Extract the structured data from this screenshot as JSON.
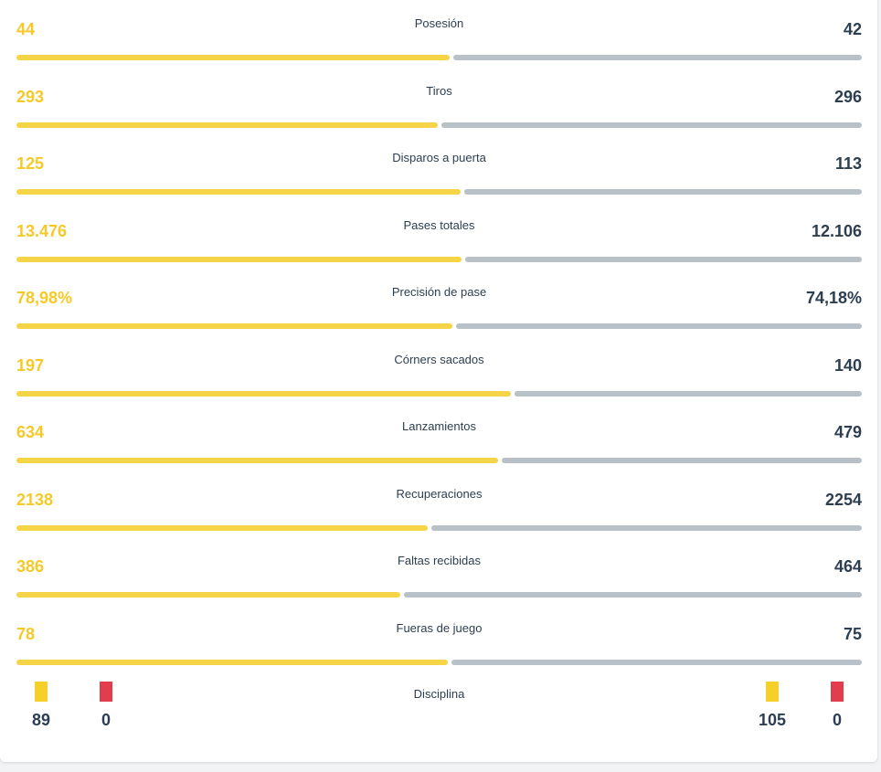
{
  "stats": [
    {
      "label": "Posesión",
      "home": "44",
      "away": "42",
      "home_share": 0.512
    },
    {
      "label": "Tiros",
      "home": "293",
      "away": "296",
      "home_share": 0.498
    },
    {
      "label": "Disparos a puerta",
      "home": "125",
      "away": "113",
      "home_share": 0.525
    },
    {
      "label": "Pases totales",
      "home": "13.476",
      "away": "12.106",
      "home_share": 0.527
    },
    {
      "label": "Precisión de pase",
      "home": "78,98%",
      "away": "74,18%",
      "home_share": 0.516
    },
    {
      "label": "Córners sacados",
      "home": "197",
      "away": "140",
      "home_share": 0.585
    },
    {
      "label": "Lanzamientos",
      "home": "634",
      "away": "479",
      "home_share": 0.57
    },
    {
      "label": "Recuperaciones",
      "home": "2138",
      "away": "2254",
      "home_share": 0.487
    },
    {
      "label": "Faltas recibidas",
      "home": "386",
      "away": "464",
      "home_share": 0.454
    },
    {
      "label": "Fueras de juego",
      "home": "78",
      "away": "75",
      "home_share": 0.51
    }
  ],
  "discipline": {
    "label": "Disciplina",
    "home_yellow": "89",
    "home_red": "0",
    "away_yellow": "105",
    "away_red": "0"
  },
  "colors": {
    "home": "#f6c928",
    "away": "#b8c0c8",
    "text": "#2c3e50",
    "red_card": "#e23d4d"
  }
}
